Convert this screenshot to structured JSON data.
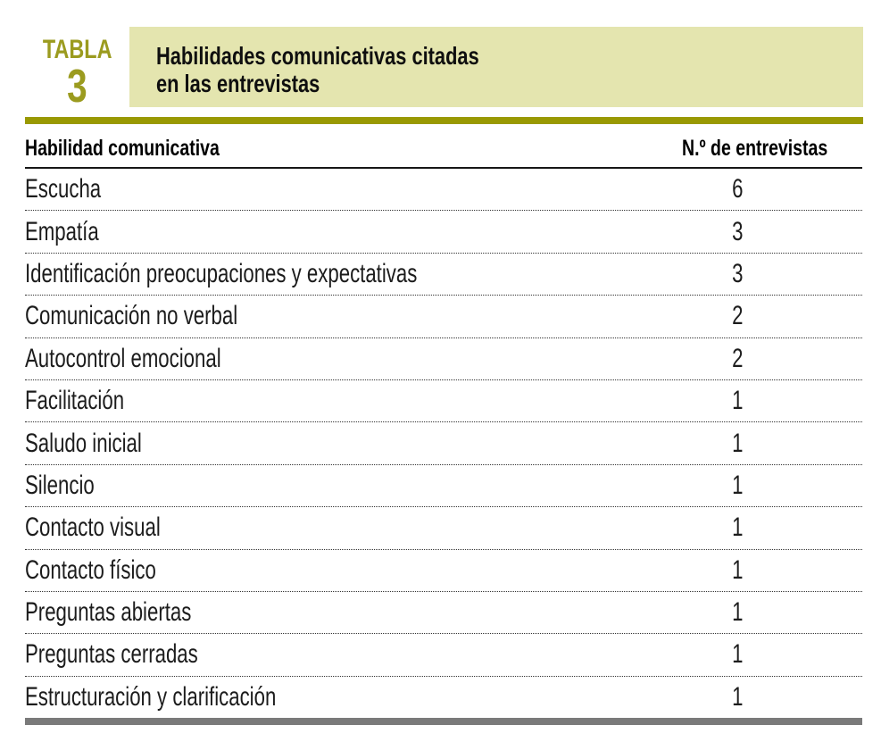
{
  "document": {
    "kicker": {
      "label": "TABLA",
      "number": "3"
    },
    "title": {
      "line1": "Habilidades comunicativas citadas",
      "line2": "en las entrevistas"
    }
  },
  "table": {
    "columns": [
      {
        "label": "Habilidad comunicativa"
      },
      {
        "label": "N.º de entrevistas"
      }
    ],
    "rows": [
      {
        "skill": "Escucha",
        "count": "6"
      },
      {
        "skill": "Empatía",
        "count": "3"
      },
      {
        "skill": "Identificación preocupaciones y expectativas",
        "count": "3"
      },
      {
        "skill": "Comunicación no verbal",
        "count": "2"
      },
      {
        "skill": "Autocontrol emocional",
        "count": "2"
      },
      {
        "skill": "Facilitación",
        "count": "1"
      },
      {
        "skill": "Saludo inicial",
        "count": "1"
      },
      {
        "skill": "Silencio",
        "count": "1"
      },
      {
        "skill": "Contacto visual",
        "count": "1"
      },
      {
        "skill": "Contacto físico",
        "count": "1"
      },
      {
        "skill": "Preguntas abiertas",
        "count": "1"
      },
      {
        "skill": "Preguntas cerradas",
        "count": "1"
      },
      {
        "skill": "Estructuración y clarificación",
        "count": "1"
      }
    ]
  },
  "colors": {
    "accent_olive": "#9b9b1f",
    "rule_olive": "#999902",
    "title_box_bg": "#e4e5af",
    "bottom_bar_gray": "#7a7a7a",
    "text_dark": "#1c1c1c"
  }
}
